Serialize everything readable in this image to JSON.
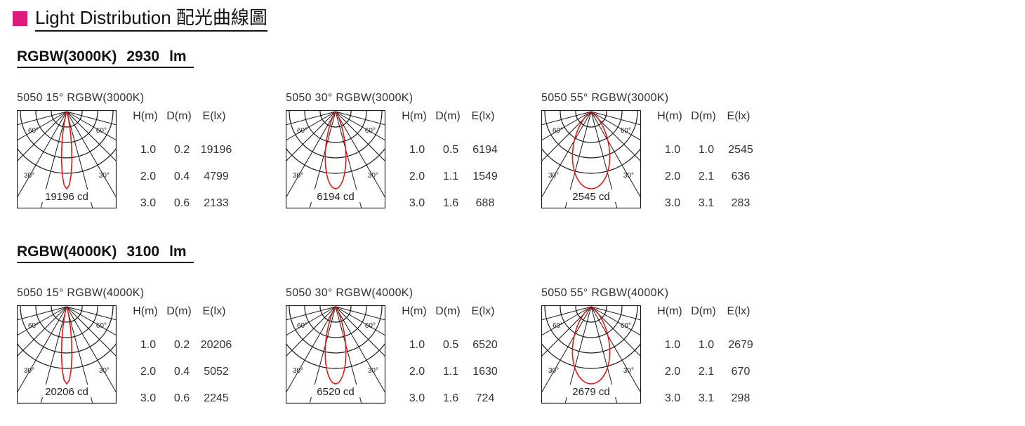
{
  "header": {
    "title": "Light Distribution  配光曲線圖",
    "accent_color": "#e0197d"
  },
  "sections": [
    {
      "title": "RGBW(3000K)",
      "lumens": "2930",
      "unit": "lm",
      "panels": [
        {
          "label": "5050  15°  RGBW(3000K)",
          "cd_label": "19196 cd",
          "beam_angle": 15,
          "table_headers": [
            "H(m)",
            "D(m)",
            "E(lx)"
          ],
          "rows": [
            [
              "1.0",
              "0.2",
              "19196"
            ],
            [
              "2.0",
              "0.4",
              "4799"
            ],
            [
              "3.0",
              "0.6",
              "2133"
            ]
          ]
        },
        {
          "label": "5050  30°  RGBW(3000K)",
          "cd_label": "6194 cd",
          "beam_angle": 30,
          "table_headers": [
            "H(m)",
            "D(m)",
            "E(lx)"
          ],
          "rows": [
            [
              "1.0",
              "0.5",
              "6194"
            ],
            [
              "2.0",
              "1.1",
              "1549"
            ],
            [
              "3.0",
              "1.6",
              "688"
            ]
          ]
        },
        {
          "label": "5050  55°  RGBW(3000K)",
          "cd_label": "2545 cd",
          "beam_angle": 55,
          "table_headers": [
            "H(m)",
            "D(m)",
            "E(lx)"
          ],
          "rows": [
            [
              "1.0",
              "1.0",
              "2545"
            ],
            [
              "2.0",
              "2.1",
              "636"
            ],
            [
              "3.0",
              "3.1",
              "283"
            ]
          ]
        }
      ]
    },
    {
      "title": "RGBW(4000K)",
      "lumens": "3100",
      "unit": "lm",
      "panels": [
        {
          "label": "5050  15°  RGBW(4000K)",
          "cd_label": "20206 cd",
          "beam_angle": 15,
          "table_headers": [
            "H(m)",
            "D(m)",
            "E(lx)"
          ],
          "rows": [
            [
              "1.0",
              "0.2",
              "20206"
            ],
            [
              "2.0",
              "0.4",
              "5052"
            ],
            [
              "3.0",
              "0.6",
              "2245"
            ]
          ]
        },
        {
          "label": "5050  30°  RGBW(4000K)",
          "cd_label": "6520 cd",
          "beam_angle": 30,
          "table_headers": [
            "H(m)",
            "D(m)",
            "E(lx)"
          ],
          "rows": [
            [
              "1.0",
              "0.5",
              "6520"
            ],
            [
              "2.0",
              "1.1",
              "1630"
            ],
            [
              "3.0",
              "1.6",
              "724"
            ]
          ]
        },
        {
          "label": "5050  55°  RGBW(4000K)",
          "cd_label": "2679 cd",
          "beam_angle": 55,
          "table_headers": [
            "H(m)",
            "D(m)",
            "E(lx)"
          ],
          "rows": [
            [
              "1.0",
              "1.0",
              "2679"
            ],
            [
              "2.0",
              "2.1",
              "670"
            ],
            [
              "3.0",
              "3.1",
              "298"
            ]
          ]
        }
      ]
    }
  ],
  "polar_labels": {
    "angle_60": "60°",
    "angle_30": "30°"
  },
  "colors": {
    "curve": "#d81e1e",
    "grid": "#1a1a1a"
  }
}
